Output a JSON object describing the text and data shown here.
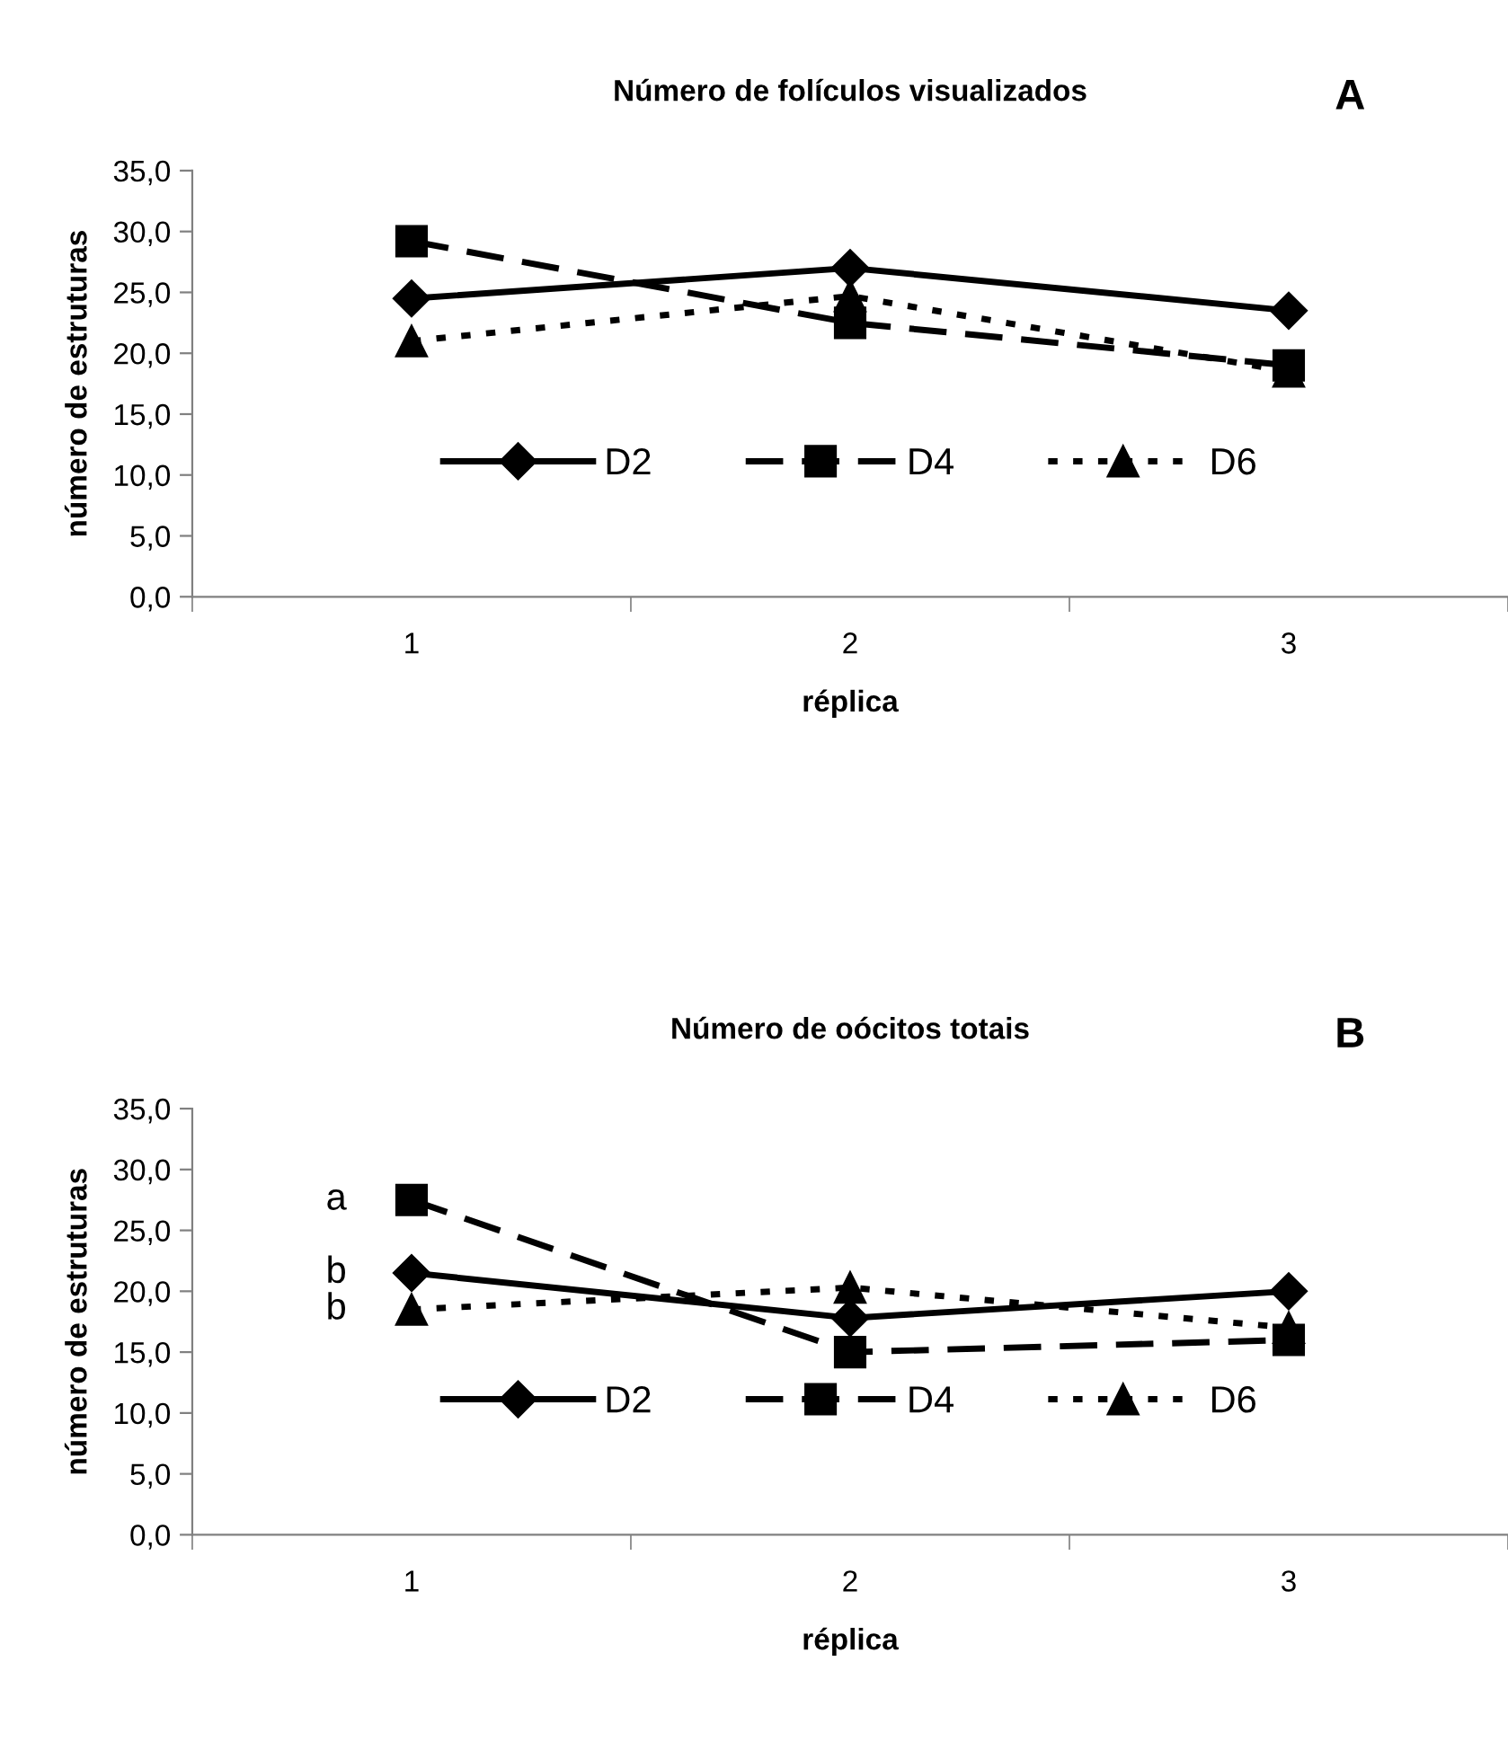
{
  "chart_data": [
    {
      "type": "line",
      "title": "Número de folículos visualizados",
      "xlabel": "réplica",
      "ylabel": "número de estruturas",
      "categories": [
        "1",
        "2",
        "3"
      ],
      "series": [
        {
          "name": "D2",
          "color": "#000000",
          "marker": "diamond",
          "line_style": "solid",
          "values": [
            24.5,
            27.0,
            23.5
          ]
        },
        {
          "name": "D4",
          "color": "#000000",
          "marker": "square",
          "line_style": "dashed",
          "values": [
            29.2,
            22.5,
            19.0
          ]
        },
        {
          "name": "D6",
          "color": "#000000",
          "marker": "triangle",
          "line_style": "dotted",
          "values": [
            21.0,
            24.7,
            18.5
          ]
        }
      ],
      "ylim": [
        0,
        35
      ],
      "yticks": [
        {
          "value": 0,
          "label": "0,0"
        },
        {
          "value": 5,
          "label": "5,0"
        },
        {
          "value": 10,
          "label": "10,0"
        },
        {
          "value": 15,
          "label": "15,0"
        },
        {
          "value": 20,
          "label": "20,0"
        },
        {
          "value": 25,
          "label": "25,0"
        },
        {
          "value": 30,
          "label": "30,0"
        },
        {
          "value": 35,
          "label": "35,0"
        }
      ],
      "legend": "center",
      "grid": false,
      "annotations": [
        "A"
      ]
    },
    {
      "type": "line",
      "title": "Número de oócitos totais",
      "xlabel": "réplica",
      "ylabel": "número de estruturas",
      "categories": [
        "1",
        "2",
        "3"
      ],
      "series": [
        {
          "name": "D2",
          "color": "#000000",
          "marker": "diamond",
          "line_style": "solid",
          "values": [
            21.5,
            17.8,
            20.0
          ]
        },
        {
          "name": "D4",
          "color": "#000000",
          "marker": "square",
          "line_style": "dashed",
          "values": [
            27.5,
            15.0,
            16.0
          ]
        },
        {
          "name": "D6",
          "color": "#000000",
          "marker": "triangle",
          "line_style": "dotted",
          "values": [
            18.5,
            20.3,
            17.0
          ]
        }
      ],
      "ylim": [
        0,
        35
      ],
      "yticks": [
        {
          "value": 0,
          "label": "0,0"
        },
        {
          "value": 5,
          "label": "5,0"
        },
        {
          "value": 10,
          "label": "10,0"
        },
        {
          "value": 15,
          "label": "15,0"
        },
        {
          "value": 20,
          "label": "20,0"
        },
        {
          "value": 25,
          "label": "25,0"
        },
        {
          "value": 30,
          "label": "30,0"
        },
        {
          "value": 35,
          "label": "35,0"
        }
      ],
      "legend": "center",
      "grid": false,
      "annotations": [
        "B",
        {
          "text": "a",
          "x": "1",
          "y": 27.5
        },
        {
          "text": "b",
          "x": "1",
          "y": 21.5
        },
        {
          "text": "b",
          "x": "1",
          "y": 18.5
        }
      ]
    }
  ]
}
